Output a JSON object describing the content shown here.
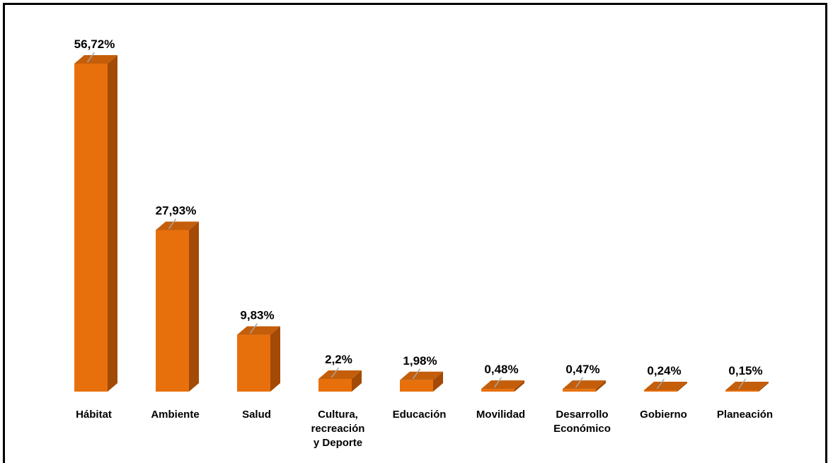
{
  "chart_data": {
    "type": "bar",
    "title": "",
    "xlabel": "",
    "ylabel": "",
    "categories": [
      [
        "Hábitat"
      ],
      [
        "Ambiente"
      ],
      [
        "Salud"
      ],
      [
        "Cultura,",
        "recreación",
        "y Deporte"
      ],
      [
        "Educación"
      ],
      [
        "Movilidad"
      ],
      [
        "Desarrollo",
        "Económico"
      ],
      [
        "Gobierno"
      ],
      [
        "Planeación"
      ]
    ],
    "values": [
      56.72,
      27.93,
      9.83,
      2.2,
      1.98,
      0.48,
      0.47,
      0.24,
      0.15
    ],
    "value_labels": [
      "56,72%",
      "27,93%",
      "9,83%",
      "2,2%",
      "1,98%",
      "0,48%",
      "0,47%",
      "0,24%",
      "0,15%"
    ],
    "ylim": [
      0,
      56.72
    ],
    "grid": false,
    "legend": "none",
    "bar_style": "3d",
    "colors": {
      "front": "#E8700C",
      "side": "#A34A07",
      "top": "#C45E0A",
      "leader_line": "#A6A6A6",
      "text": "#000000",
      "frame": "#000000"
    }
  }
}
